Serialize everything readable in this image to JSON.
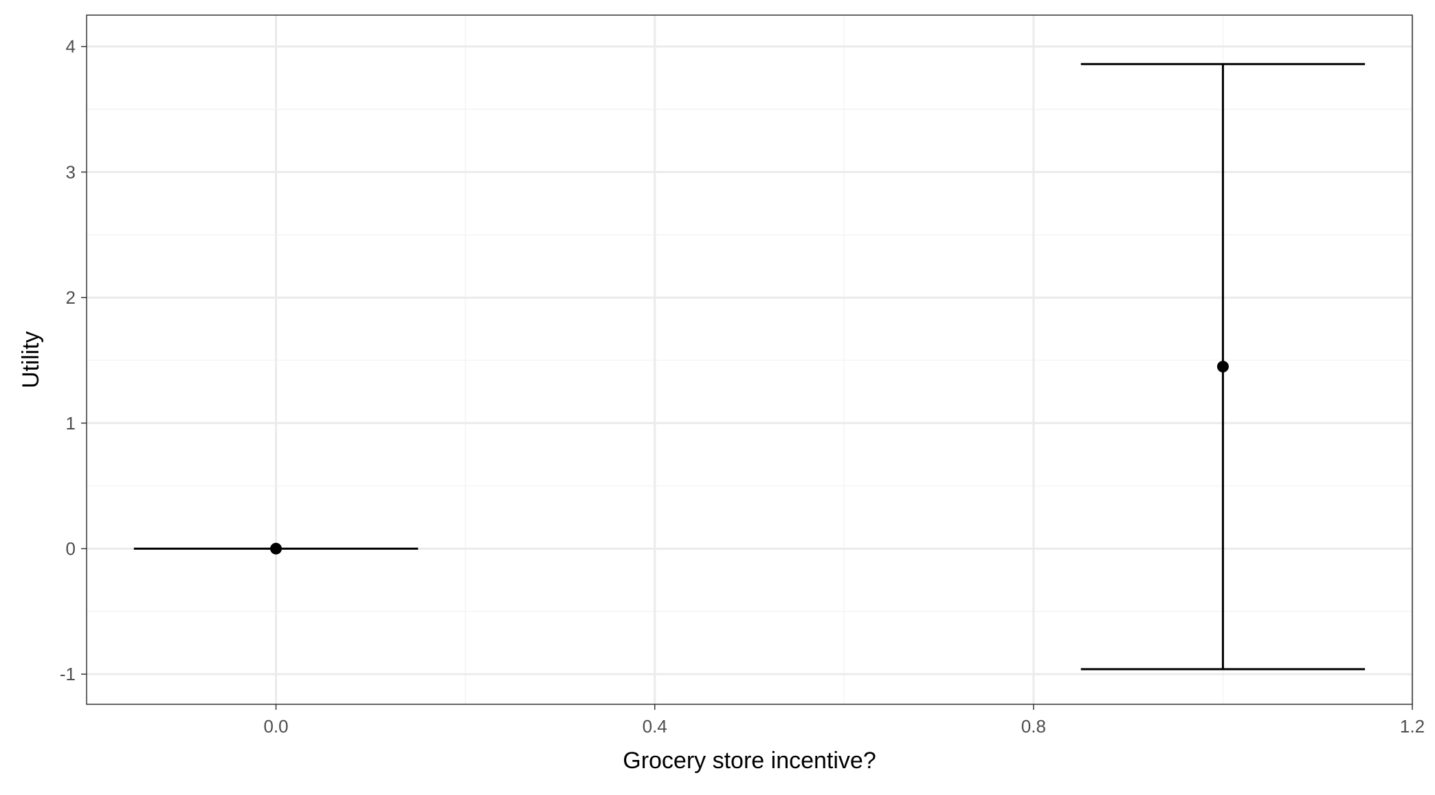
{
  "chart_data": {
    "type": "scatter",
    "xlabel": "Grocery store incentive?",
    "ylabel": "Utility",
    "xlim": [
      -0.2,
      1.2
    ],
    "ylim": [
      -1.24,
      4.25
    ],
    "x_ticks": [
      0.0,
      0.4,
      0.8,
      1.2
    ],
    "x_tick_labels": [
      "0.0",
      "0.4",
      "0.8",
      "1.2"
    ],
    "y_ticks": [
      -1,
      0,
      1,
      2,
      3,
      4
    ],
    "y_tick_labels": [
      "-1",
      "0",
      "1",
      "2",
      "3",
      "4"
    ],
    "grid": true,
    "points": [
      {
        "x": 0,
        "y": 0,
        "ymin": 0,
        "ymax": 0
      },
      {
        "x": 1,
        "y": 1.45,
        "ymin": -0.96,
        "ymax": 3.86
      }
    ],
    "errorbar_halfwidth": 0.15,
    "colors": {
      "marks": "#000000",
      "grid_major": "#ebebeb",
      "grid_minor": "#f4f4f4",
      "panel_border": "#333333",
      "tick_label": "#4d4d4d"
    }
  }
}
